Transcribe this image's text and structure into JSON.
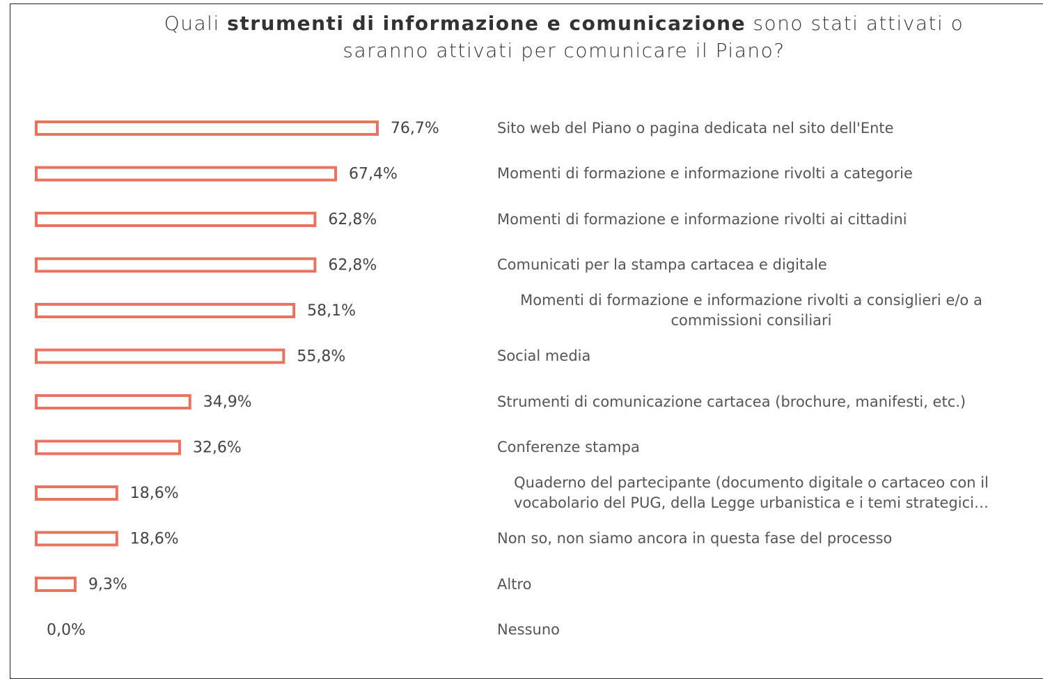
{
  "chart_data": {
    "type": "bar",
    "title": [
      "Quali",
      "strumenti di informazione e comunicazione",
      "sono stati attivati o",
      "saranno attivati per comunicare il Piano?"
    ],
    "categories": [
      "Sito web del Piano o pagina dedicata nel sito dell'Ente",
      "Momenti di formazione e informazione rivolti a categorie",
      "Momenti di formazione e informazione rivolti ai cittadini",
      "Comunicati per la stampa cartacea e digitale",
      "Momenti di formazione e informazione rivolti a consiglieri e/o a commissioni consiliari",
      "Social media",
      "Strumenti di comunicazione cartacea (brochure, manifesti, etc.)",
      "Conferenze stampa",
      "Quaderno del partecipante (documento digitale o cartaceo con il vocabolario del PUG, della Legge urbanistica e i temi strategici…",
      "Non so, non siamo ancora in questa fase del processo",
      "Altro",
      "Nessuno"
    ],
    "values": [
      76.7,
      67.4,
      62.8,
      62.8,
      58.1,
      55.8,
      34.9,
      32.6,
      18.6,
      18.6,
      9.3,
      0.0
    ],
    "value_labels": [
      "76,7%",
      "67,4%",
      "62,8%",
      "62,8%",
      "58,1%",
      "55,8%",
      "34,9%",
      "32,6%",
      "18,6%",
      "18,6%",
      "9,3%",
      "0,0%"
    ],
    "color": "#e8735f"
  }
}
